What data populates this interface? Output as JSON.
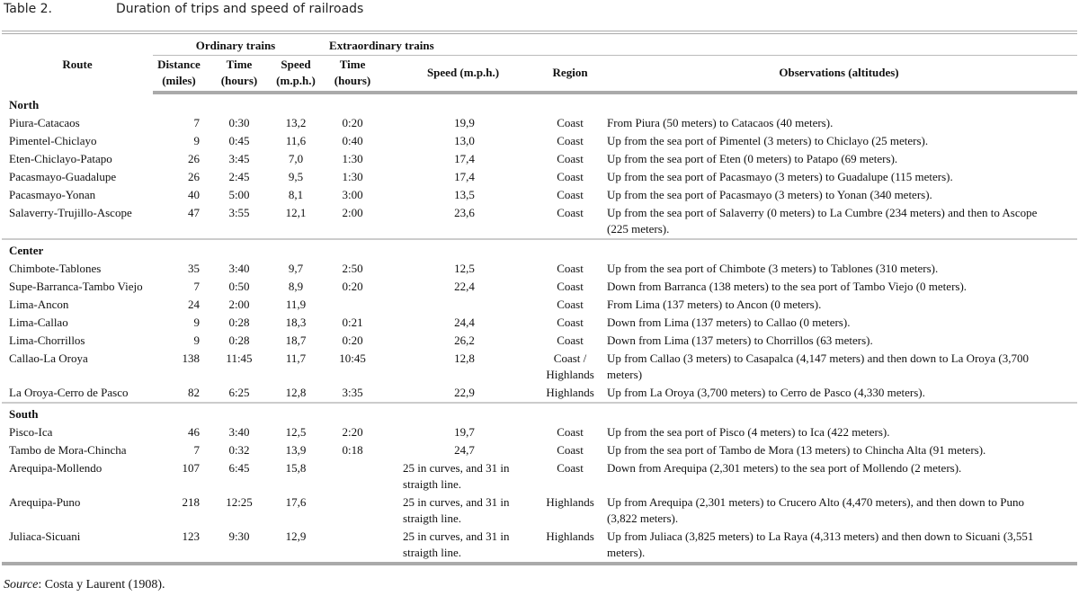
{
  "table_number": "Table 2.",
  "title": "Duration of trips and speed of railroads",
  "headers": {
    "route": "Route",
    "ordinary": "Ordinary trains",
    "extraordinary": "Extraordinary trains",
    "distance": "Distance",
    "distance_unit": "(miles)",
    "time": "Time",
    "time_unit": "(hours)",
    "speed": "Speed",
    "speed_unit": "(m.p.h.)",
    "time2": "Time",
    "time2_unit": "(hours)",
    "speed2": "Speed (m.p.h.)",
    "region": "Region",
    "observations": "Observations (altitudes)"
  },
  "sections": [
    {
      "name": "North",
      "rows": [
        {
          "route": "Piura-Catacaos",
          "distance": "7",
          "time": "0:30",
          "speed": "13,2",
          "time2": "0:20",
          "speed2": "19,9",
          "region": "Coast",
          "obs": "From Piura (50 meters) to Catacaos (40 meters)."
        },
        {
          "route": "Pimentel-Chiclayo",
          "distance": "9",
          "time": "0:45",
          "speed": "11,6",
          "time2": "0:40",
          "speed2": "13,0",
          "region": "Coast",
          "obs": "Up from the sea port of Pimentel (3 meters) to Chiclayo (25 meters)."
        },
        {
          "route": "Eten-Chiclayo-Patapo",
          "distance": "26",
          "time": "3:45",
          "speed": "7,0",
          "time2": "1:30",
          "speed2": "17,4",
          "region": "Coast",
          "obs": "Up from the sea port of Eten (0 meters) to Patapo (69 meters)."
        },
        {
          "route": "Pacasmayo-Guadalupe",
          "distance": "26",
          "time": "2:45",
          "speed": "9,5",
          "time2": "1:30",
          "speed2": "17,4",
          "region": "Coast",
          "obs": "Up from the sea port of Pacasmayo (3 meters) to Guadalupe (115 meters)."
        },
        {
          "route": "Pacasmayo-Yonan",
          "distance": "40",
          "time": "5:00",
          "speed": "8,1",
          "time2": "3:00",
          "speed2": "13,5",
          "region": "Coast",
          "obs": "Up from the sea port of Pacasmayo (3 meters) to Yonan (340 meters)."
        },
        {
          "route": "Salaverry-Trujillo-Ascope",
          "distance": "47",
          "time": "3:55",
          "speed": "12,1",
          "time2": "2:00",
          "speed2": "23,6",
          "region": "Coast",
          "obs": "Up from the sea port of Salaverry (0 meters) to La Cumbre (234 meters) and then to Ascope (225 meters)."
        }
      ]
    },
    {
      "name": "Center",
      "rows": [
        {
          "route": "Chimbote-Tablones",
          "distance": "35",
          "time": "3:40",
          "speed": "9,7",
          "time2": "2:50",
          "speed2": "12,5",
          "region": "Coast",
          "obs": "Up from the sea port of Chimbote (3 meters) to Tablones (310 meters)."
        },
        {
          "route": "Supe-Barranca-Tambo Viejo",
          "distance": "7",
          "time": "0:50",
          "speed": "8,9",
          "time2": "0:20",
          "speed2": "22,4",
          "region": "Coast",
          "obs": "Down from Barranca (138 meters) to the sea port of Tambo Viejo (0 meters)."
        },
        {
          "route": "Lima-Ancon",
          "distance": "24",
          "time": "2:00",
          "speed": "11,9",
          "time2": "",
          "speed2": "",
          "region": "Coast",
          "obs": "From Lima (137 meters) to Ancon (0 meters)."
        },
        {
          "route": "Lima-Callao",
          "distance": "9",
          "time": "0:28",
          "speed": "18,3",
          "time2": "0:21",
          "speed2": "24,4",
          "region": "Coast",
          "obs": "Down from Lima (137 meters) to Callao (0 meters)."
        },
        {
          "route": "Lima-Chorrillos",
          "distance": "9",
          "time": "0:28",
          "speed": "18,7",
          "time2": "0:20",
          "speed2": "26,2",
          "region": "Coast",
          "obs": "Down from Lima (137 meters) to Chorrillos (63 meters)."
        },
        {
          "route": "Callao-La Oroya",
          "distance": "138",
          "time": "11:45",
          "speed": "11,7",
          "time2": "10:45",
          "speed2": "12,8",
          "region": "Coast / Highlands",
          "obs": "Up from Callao (3 meters) to Casapalca (4,147 meters) and then down to La Oroya (3,700 meters)"
        },
        {
          "route": "La Oroya-Cerro de Pasco",
          "distance": "82",
          "time": "6:25",
          "speed": "12,8",
          "time2": "3:35",
          "speed2": "22,9",
          "region": "Highlands",
          "obs": "Up from La Oroya (3,700 meters) to Cerro de Pasco (4,330 meters)."
        }
      ]
    },
    {
      "name": "South",
      "rows": [
        {
          "route": "Pisco-Ica",
          "distance": "46",
          "time": "3:40",
          "speed": "12,5",
          "time2": "2:20",
          "speed2": "19,7",
          "region": "Coast",
          "obs": "Up from the sea port of Pisco (4 meters) to Ica (422 meters)."
        },
        {
          "route": "Tambo de Mora-Chincha",
          "distance": "7",
          "time": "0:32",
          "speed": "13,9",
          "time2": "0:18",
          "speed2": "24,7",
          "region": "Coast",
          "obs": "Up from the sea port of Tambo de Mora (13 meters) to Chincha Alta (91 meters)."
        },
        {
          "route": "Arequipa-Mollendo",
          "distance": "107",
          "time": "6:45",
          "speed": "15,8",
          "time2": "",
          "speed2": "25 in curves, and 31 in straigth line.",
          "region": "Coast",
          "obs": "Down from Arequipa (2,301 meters) to the sea port of Mollendo (2 meters)."
        },
        {
          "route": "Arequipa-Puno",
          "distance": "218",
          "time": "12:25",
          "speed": "17,6",
          "time2": "",
          "speed2": "25 in curves, and 31 in straigth line.",
          "region": "Highlands",
          "obs": "Up from Arequipa (2,301 meters) to Crucero Alto (4,470 meters), and then down to Puno (3,822 meters)."
        },
        {
          "route": "Juliaca-Sicuani",
          "distance": "123",
          "time": "9:30",
          "speed": "12,9",
          "time2": "",
          "speed2": "25 in curves, and 31 in straigth line.",
          "region": "Highlands",
          "obs": "Up from Juliaca (3,825 meters) to La Raya (4,313 meters) and then down to Sicuani (3,551 meters)."
        }
      ]
    }
  ],
  "source_label": "Source",
  "source_text": ": Costa y Laurent (1908)."
}
